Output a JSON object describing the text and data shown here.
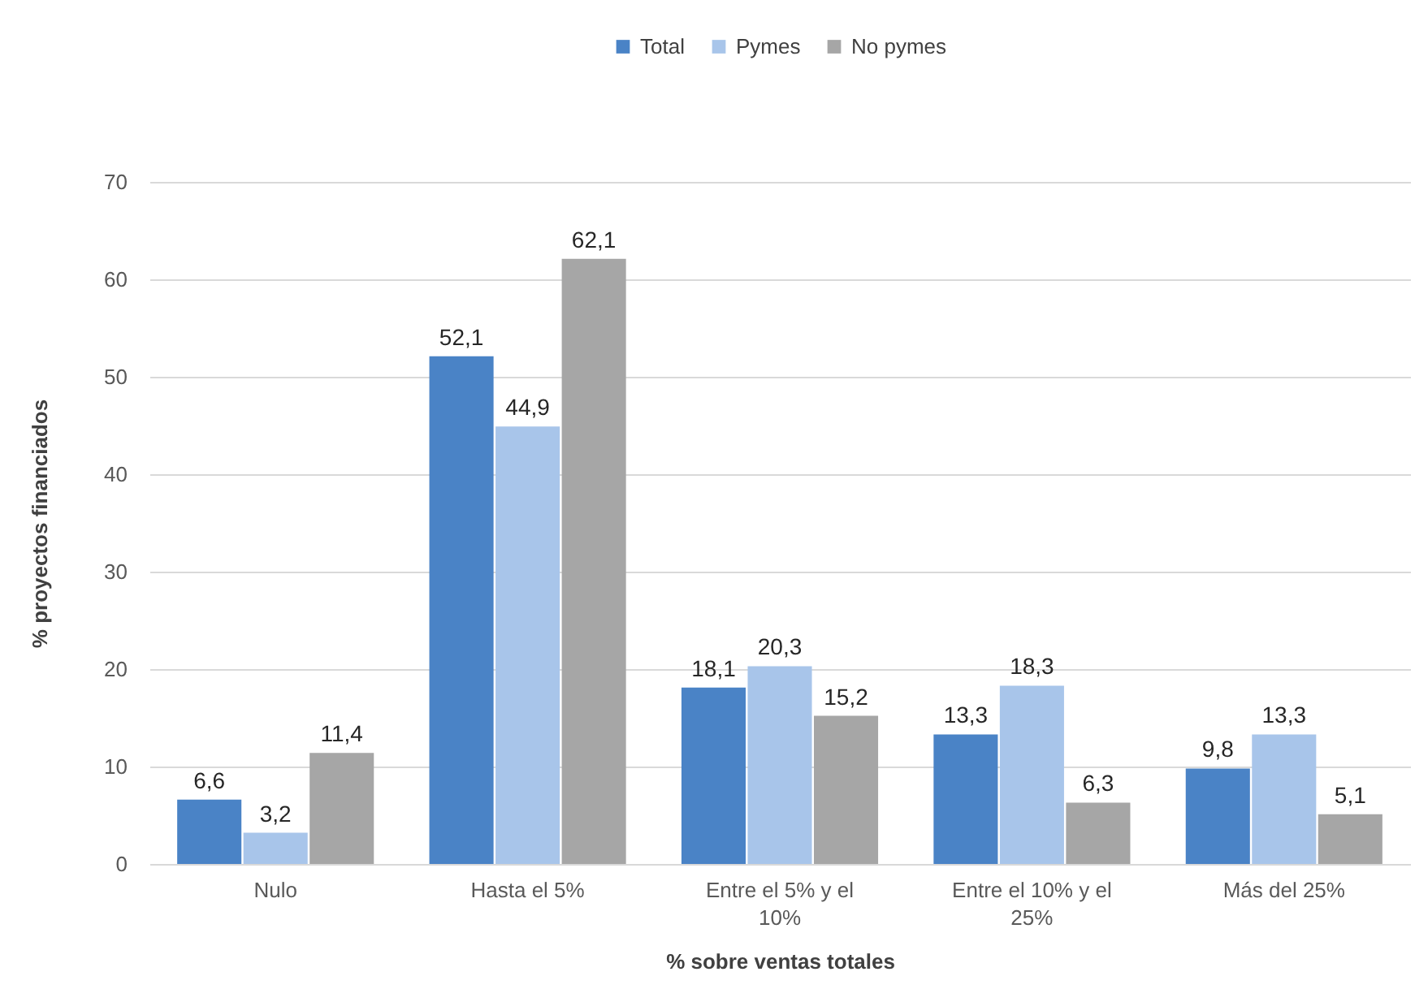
{
  "chart_data": {
    "type": "bar",
    "categories": [
      "Nulo",
      "Hasta el 5%",
      "Entre el 5% y el 10%",
      "Entre el 10% y el 25%",
      "Más del 25%"
    ],
    "series": [
      {
        "name": "Total",
        "color": "#4a83c6",
        "values": [
          6.6,
          52.1,
          18.1,
          13.3,
          9.8
        ],
        "value_labels": [
          "6,6",
          "52,1",
          "18,1",
          "13,3",
          "9,8"
        ]
      },
      {
        "name": "Pymes",
        "color": "#a8c5ea",
        "values": [
          3.2,
          44.9,
          20.3,
          18.3,
          13.3
        ],
        "value_labels": [
          "3,2",
          "44,9",
          "20,3",
          "18,3",
          "13,3"
        ]
      },
      {
        "name": "No pymes",
        "color": "#a6a6a6",
        "values": [
          11.4,
          62.1,
          15.2,
          6.3,
          5.1
        ],
        "value_labels": [
          "11,4",
          "62,1",
          "15,2",
          "6,3",
          "5,1"
        ]
      }
    ],
    "xlabel": "% sobre ventas totales",
    "ylabel": "% proyectos financiados",
    "ylim": [
      0,
      70
    ],
    "yticks": [
      0,
      10,
      20,
      30,
      40,
      50,
      60,
      70
    ],
    "grid": "y",
    "legend": "top"
  }
}
